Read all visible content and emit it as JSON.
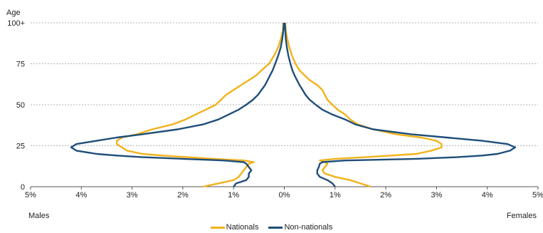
{
  "chart_data": {
    "type": "line",
    "ylabel": "Age",
    "y_ticks": [
      "100+",
      "75",
      "50",
      "25",
      "0"
    ],
    "x_ticks": [
      "5%",
      "4%",
      "3%",
      "2%",
      "1%",
      "0%",
      "1%",
      "2%",
      "3%",
      "4%",
      "5%"
    ],
    "xlim": [
      -5,
      5
    ],
    "ylim": [
      0,
      100
    ],
    "left_label": "Males",
    "right_label": "Females",
    "grid": "horizontal dotted",
    "legend_position": "bottom-center",
    "series": [
      {
        "name": "Nationals",
        "color": "#F2B21B",
        "males": [
          [
            0,
            1.6
          ],
          [
            2,
            1.3
          ],
          [
            4,
            1.0
          ],
          [
            6,
            0.9
          ],
          [
            8,
            0.85
          ],
          [
            10,
            0.8
          ],
          [
            12,
            0.75
          ],
          [
            14,
            0.7
          ],
          [
            15,
            0.6
          ],
          [
            16,
            0.8
          ],
          [
            17,
            1.4
          ],
          [
            18,
            1.9
          ],
          [
            19,
            2.4
          ],
          [
            20,
            2.8
          ],
          [
            22,
            3.1
          ],
          [
            24,
            3.2
          ],
          [
            26,
            3.3
          ],
          [
            28,
            3.3
          ],
          [
            30,
            3.2
          ],
          [
            32,
            2.9
          ],
          [
            35,
            2.6
          ],
          [
            38,
            2.2
          ],
          [
            41,
            1.95
          ],
          [
            44,
            1.75
          ],
          [
            47,
            1.55
          ],
          [
            50,
            1.35
          ],
          [
            53,
            1.25
          ],
          [
            56,
            1.15
          ],
          [
            59,
            1.0
          ],
          [
            62,
            0.85
          ],
          [
            65,
            0.7
          ],
          [
            68,
            0.55
          ],
          [
            71,
            0.45
          ],
          [
            75,
            0.3
          ],
          [
            80,
            0.2
          ],
          [
            85,
            0.12
          ],
          [
            90,
            0.07
          ],
          [
            95,
            0.03
          ],
          [
            100,
            0.02
          ]
        ],
        "females": [
          [
            0,
            1.7
          ],
          [
            2,
            1.5
          ],
          [
            4,
            1.3
          ],
          [
            6,
            1.0
          ],
          [
            8,
            0.8
          ],
          [
            10,
            0.75
          ],
          [
            12,
            0.8
          ],
          [
            14,
            0.85
          ],
          [
            15,
            0.8
          ],
          [
            16,
            0.7
          ],
          [
            17,
            1.0
          ],
          [
            18,
            1.6
          ],
          [
            19,
            2.1
          ],
          [
            20,
            2.6
          ],
          [
            22,
            2.9
          ],
          [
            24,
            3.1
          ],
          [
            26,
            3.1
          ],
          [
            28,
            3.0
          ],
          [
            30,
            2.7
          ],
          [
            32,
            2.2
          ],
          [
            35,
            1.75
          ],
          [
            38,
            1.45
          ],
          [
            41,
            1.3
          ],
          [
            44,
            1.2
          ],
          [
            47,
            1.05
          ],
          [
            50,
            0.95
          ],
          [
            53,
            0.85
          ],
          [
            56,
            0.8
          ],
          [
            59,
            0.75
          ],
          [
            62,
            0.65
          ],
          [
            65,
            0.5
          ],
          [
            68,
            0.4
          ],
          [
            71,
            0.3
          ],
          [
            75,
            0.22
          ],
          [
            80,
            0.15
          ],
          [
            85,
            0.1
          ],
          [
            90,
            0.06
          ],
          [
            95,
            0.03
          ],
          [
            100,
            0.02
          ]
        ]
      },
      {
        "name": "Non-nationals",
        "color": "#1F4E79",
        "males": [
          [
            0,
            1.0
          ],
          [
            2,
            0.95
          ],
          [
            4,
            0.75
          ],
          [
            6,
            0.7
          ],
          [
            8,
            0.7
          ],
          [
            10,
            0.65
          ],
          [
            12,
            0.7
          ],
          [
            14,
            0.75
          ],
          [
            15,
            0.8
          ],
          [
            16,
            1.2
          ],
          [
            17,
            2.0
          ],
          [
            18,
            2.8
          ],
          [
            19,
            3.3
          ],
          [
            20,
            3.7
          ],
          [
            22,
            4.1
          ],
          [
            24,
            4.2
          ],
          [
            26,
            4.1
          ],
          [
            28,
            3.7
          ],
          [
            30,
            3.3
          ],
          [
            32,
            2.8
          ],
          [
            35,
            2.1
          ],
          [
            38,
            1.6
          ],
          [
            41,
            1.3
          ],
          [
            44,
            1.1
          ],
          [
            47,
            0.9
          ],
          [
            50,
            0.75
          ],
          [
            53,
            0.62
          ],
          [
            56,
            0.52
          ],
          [
            59,
            0.45
          ],
          [
            62,
            0.38
          ],
          [
            65,
            0.33
          ],
          [
            68,
            0.28
          ],
          [
            71,
            0.23
          ],
          [
            75,
            0.18
          ],
          [
            80,
            0.12
          ],
          [
            85,
            0.07
          ],
          [
            90,
            0.04
          ],
          [
            95,
            0.02
          ],
          [
            100,
            0.01
          ]
        ],
        "females": [
          [
            0,
            1.0
          ],
          [
            2,
            0.95
          ],
          [
            4,
            0.85
          ],
          [
            6,
            0.7
          ],
          [
            8,
            0.65
          ],
          [
            10,
            0.65
          ],
          [
            12,
            0.68
          ],
          [
            14,
            0.7
          ],
          [
            15,
            0.75
          ],
          [
            16,
            1.2
          ],
          [
            17,
            2.6
          ],
          [
            18,
            3.4
          ],
          [
            19,
            3.9
          ],
          [
            20,
            4.2
          ],
          [
            22,
            4.45
          ],
          [
            24,
            4.55
          ],
          [
            26,
            4.4
          ],
          [
            28,
            3.9
          ],
          [
            30,
            3.2
          ],
          [
            32,
            2.5
          ],
          [
            35,
            1.75
          ],
          [
            38,
            1.4
          ],
          [
            41,
            1.2
          ],
          [
            44,
            0.95
          ],
          [
            47,
            0.75
          ],
          [
            50,
            0.62
          ],
          [
            53,
            0.5
          ],
          [
            56,
            0.42
          ],
          [
            59,
            0.36
          ],
          [
            62,
            0.3
          ],
          [
            65,
            0.25
          ],
          [
            68,
            0.2
          ],
          [
            71,
            0.16
          ],
          [
            75,
            0.12
          ],
          [
            80,
            0.08
          ],
          [
            85,
            0.05
          ],
          [
            90,
            0.03
          ],
          [
            95,
            0.02
          ],
          [
            100,
            0.01
          ]
        ]
      }
    ]
  }
}
